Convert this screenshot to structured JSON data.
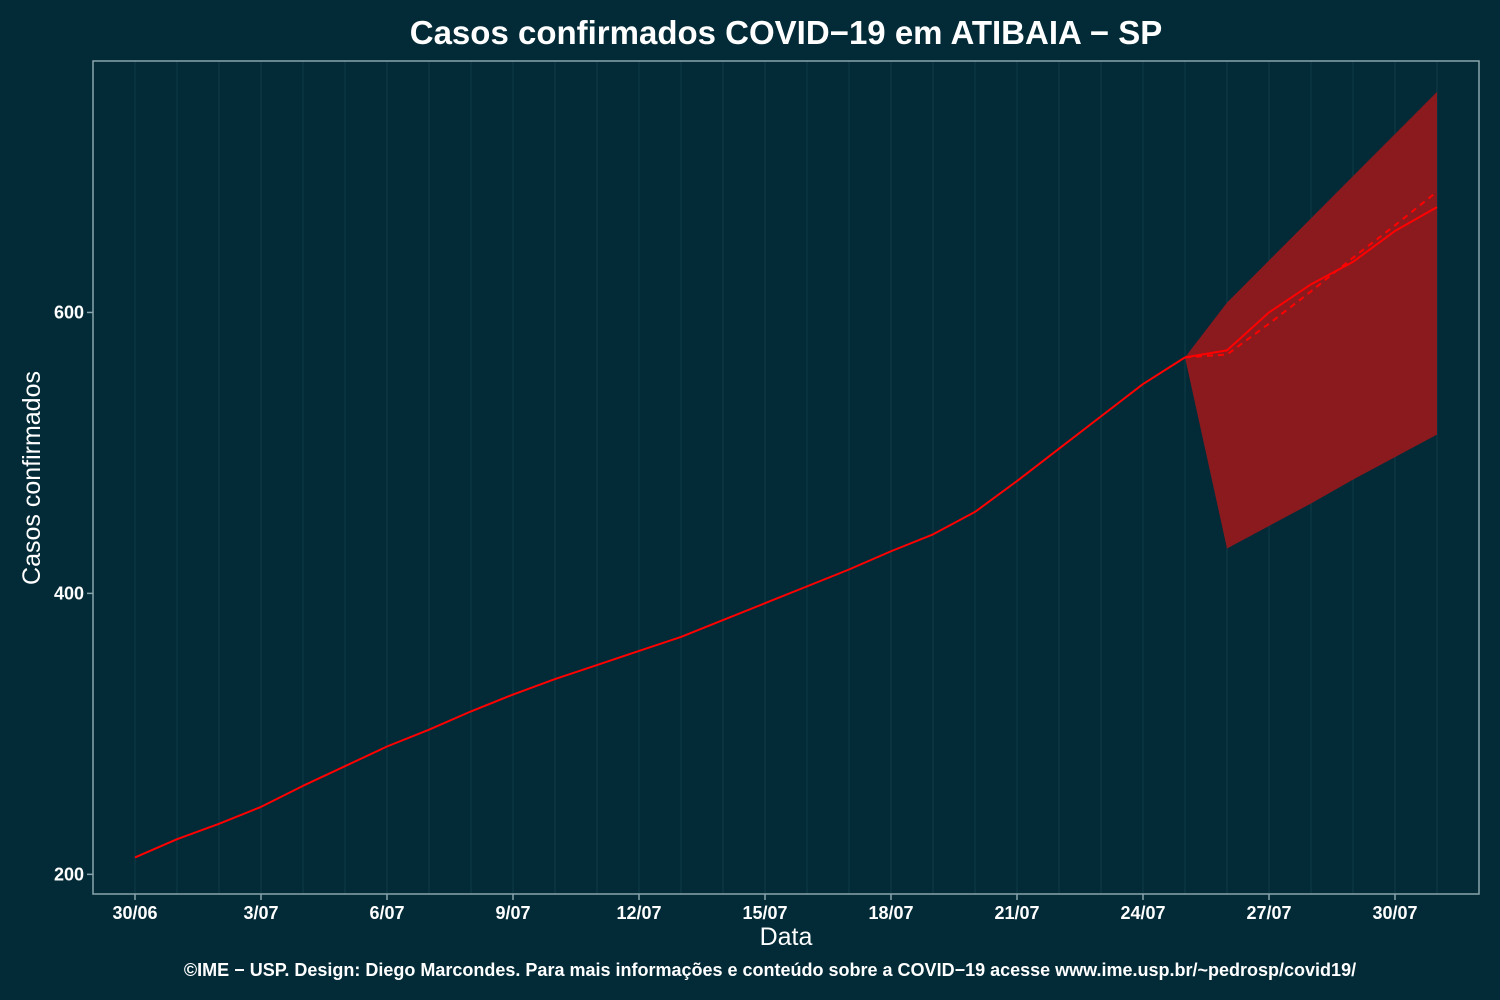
{
  "chart_data": {
    "type": "line",
    "title": "Casos confirmados COVID−19 em ATIBAIA − SP",
    "xlabel": "Data",
    "ylabel": "Casos confirmados",
    "caption": "©IME − USP. Design: Diego Marcondes. Para mais informações e conteúdo sobre a COVID−19 acesse www.ime.usp.br/~pedrosp/covid19/",
    "x_tick_labels": [
      "30/06",
      "3/07",
      "6/07",
      "9/07",
      "12/07",
      "15/07",
      "18/07",
      "21/07",
      "24/07",
      "27/07",
      "30/07"
    ],
    "y_ticks": [
      200,
      400,
      600
    ],
    "xlim": [
      "2020-06-29",
      "2020-08-01"
    ],
    "ylim": [
      186,
      779
    ],
    "grid": true,
    "colors": {
      "background": "#022a37",
      "grid": "#1b4450",
      "axis": "#8aa4ac",
      "line": "#ff0000",
      "band": "#8b1a1f"
    },
    "series": [
      {
        "style": "solid",
        "x": [
          "2020-06-30",
          "2020-07-01",
          "2020-07-02",
          "2020-07-03",
          "2020-07-04",
          "2020-07-05",
          "2020-07-06",
          "2020-07-07",
          "2020-07-08",
          "2020-07-09",
          "2020-07-10",
          "2020-07-11",
          "2020-07-12",
          "2020-07-13",
          "2020-07-14",
          "2020-07-15",
          "2020-07-16",
          "2020-07-17",
          "2020-07-18",
          "2020-07-19",
          "2020-07-20",
          "2020-07-21",
          "2020-07-22",
          "2020-07-23",
          "2020-07-24",
          "2020-07-25"
        ],
        "values": [
          212,
          225,
          236,
          248,
          263,
          277,
          291,
          303,
          316,
          328,
          339,
          349,
          359,
          369,
          381,
          393,
          405,
          417,
          430,
          442,
          458,
          480,
          503,
          526,
          549,
          568
        ]
      },
      {
        "style": "solid",
        "x": [
          "2020-07-25",
          "2020-07-26",
          "2020-07-27",
          "2020-07-28",
          "2020-07-29",
          "2020-07-30",
          "2020-07-31"
        ],
        "values": [
          568,
          573,
          600,
          620,
          636,
          658,
          675
        ]
      },
      {
        "style": "dashed",
        "x": [
          "2020-07-25",
          "2020-07-26",
          "2020-07-27",
          "2020-07-28",
          "2020-07-29",
          "2020-07-30",
          "2020-07-31"
        ],
        "values": [
          568,
          570,
          592,
          615,
          639,
          662,
          686
        ]
      }
    ],
    "band": {
      "x": [
        "2020-07-25",
        "2020-07-26",
        "2020-07-27",
        "2020-07-28",
        "2020-07-29",
        "2020-07-30",
        "2020-07-31"
      ],
      "lower": [
        568,
        432,
        448,
        464,
        481,
        497,
        513
      ],
      "upper": [
        568,
        607,
        637,
        667,
        697,
        727,
        757
      ]
    }
  }
}
